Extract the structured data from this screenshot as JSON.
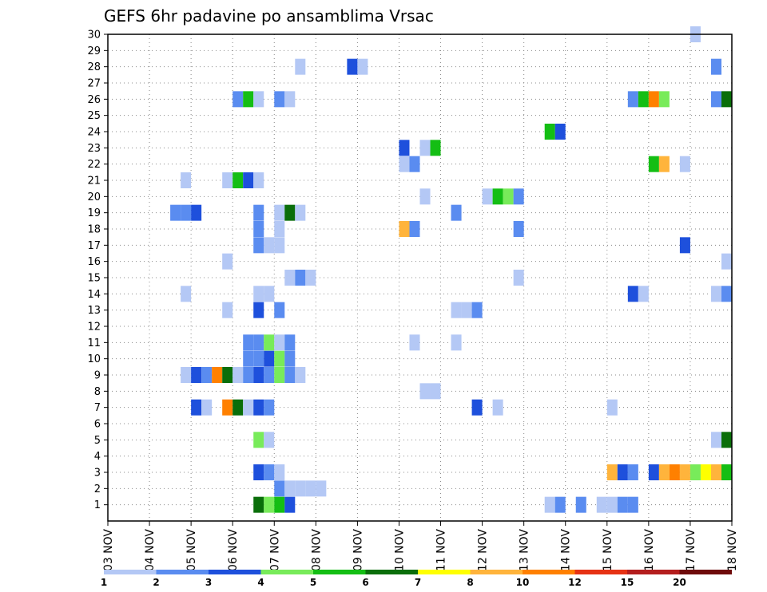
{
  "chart_data": {
    "type": "heatmap",
    "title": "GEFS 6hr padavine po ansamblima Vrsac",
    "x_tick_labels": [
      "03 NOV",
      "04 NOV",
      "05 NOV",
      "06 NOV",
      "07 NOV",
      "08 NOV",
      "09 NOV",
      "10 NOV",
      "11 NOV",
      "12 NOV",
      "13 NOV",
      "14 NOV",
      "15 NOV",
      "16 NOV",
      "17 NOV",
      "18 NOV"
    ],
    "x_unit": "6h steps from 03 NOV 00Z",
    "x_range": [
      0,
      60
    ],
    "y_tick_labels": [
      "1",
      "2",
      "3",
      "4",
      "5",
      "6",
      "7",
      "8",
      "9",
      "10",
      "11",
      "12",
      "13",
      "14",
      "15",
      "16",
      "17",
      "18",
      "19",
      "20",
      "21",
      "22",
      "23",
      "24",
      "25",
      "26",
      "27",
      "28",
      "29",
      "30"
    ],
    "y_range": [
      0,
      30
    ],
    "grid": true,
    "colorbar": {
      "labels": [
        "1",
        "2",
        "3",
        "4",
        "5",
        "6",
        "7",
        "8",
        "10",
        "12",
        "15",
        "20"
      ],
      "colors": [
        "#b4c8f5",
        "#5a8cf0",
        "#1e50dc",
        "#78eb5a",
        "#14be14",
        "#0a6e0a",
        "#ffff00",
        "#ffb43c",
        "#ff8000",
        "#e63214",
        "#b41e1e",
        "#6e0a0a"
      ]
    },
    "cells": [
      [
        30,
        57,
        1
      ],
      [
        28,
        19,
        1
      ],
      [
        28,
        24,
        3
      ],
      [
        28,
        25,
        1
      ],
      [
        28,
        59,
        2
      ],
      [
        26,
        13,
        2
      ],
      [
        26,
        14,
        5
      ],
      [
        26,
        15,
        1
      ],
      [
        26,
        17,
        2
      ],
      [
        26,
        18,
        1
      ],
      [
        26,
        51,
        2
      ],
      [
        26,
        52,
        5
      ],
      [
        26,
        53,
        9
      ],
      [
        26,
        54,
        4
      ],
      [
        26,
        59,
        2
      ],
      [
        26,
        60,
        6
      ],
      [
        24,
        43,
        5
      ],
      [
        24,
        44,
        3
      ],
      [
        23,
        29,
        3
      ],
      [
        23,
        31,
        1
      ],
      [
        23,
        32,
        5
      ],
      [
        22,
        29,
        1
      ],
      [
        22,
        30,
        2
      ],
      [
        22,
        53,
        5
      ],
      [
        22,
        54,
        8
      ],
      [
        22,
        56,
        1
      ],
      [
        21,
        8,
        1
      ],
      [
        21,
        12,
        1
      ],
      [
        21,
        13,
        5
      ],
      [
        21,
        14,
        3
      ],
      [
        21,
        15,
        1
      ],
      [
        20,
        31,
        1
      ],
      [
        20,
        37,
        1
      ],
      [
        20,
        38,
        5
      ],
      [
        20,
        39,
        4
      ],
      [
        20,
        40,
        2
      ],
      [
        19,
        7,
        2
      ],
      [
        19,
        8,
        2
      ],
      [
        19,
        9,
        3
      ],
      [
        19,
        15,
        2
      ],
      [
        19,
        17,
        1
      ],
      [
        19,
        18,
        6
      ],
      [
        19,
        19,
        1
      ],
      [
        19,
        34,
        2
      ],
      [
        18,
        15,
        2
      ],
      [
        18,
        17,
        1
      ],
      [
        18,
        29,
        8
      ],
      [
        18,
        30,
        2
      ],
      [
        18,
        40,
        2
      ],
      [
        17,
        15,
        2
      ],
      [
        17,
        16,
        1
      ],
      [
        17,
        17,
        1
      ],
      [
        17,
        56,
        3
      ],
      [
        16,
        12,
        1
      ],
      [
        16,
        60,
        1
      ],
      [
        15,
        18,
        1
      ],
      [
        15,
        19,
        2
      ],
      [
        15,
        20,
        1
      ],
      [
        15,
        40,
        1
      ],
      [
        14,
        8,
        1
      ],
      [
        14,
        15,
        1
      ],
      [
        14,
        16,
        1
      ],
      [
        14,
        51,
        3
      ],
      [
        14,
        52,
        1
      ],
      [
        14,
        59,
        1
      ],
      [
        14,
        60,
        2
      ],
      [
        13,
        12,
        1
      ],
      [
        13,
        15,
        3
      ],
      [
        13,
        17,
        2
      ],
      [
        13,
        34,
        1
      ],
      [
        13,
        35,
        1
      ],
      [
        13,
        36,
        2
      ],
      [
        11,
        14,
        2
      ],
      [
        11,
        15,
        2
      ],
      [
        11,
        16,
        4
      ],
      [
        11,
        17,
        1
      ],
      [
        11,
        18,
        2
      ],
      [
        11,
        30,
        1
      ],
      [
        11,
        34,
        1
      ],
      [
        10,
        14,
        2
      ],
      [
        10,
        15,
        2
      ],
      [
        10,
        16,
        3
      ],
      [
        10,
        17,
        4
      ],
      [
        10,
        18,
        2
      ],
      [
        9,
        8,
        1
      ],
      [
        9,
        9,
        3
      ],
      [
        9,
        10,
        2
      ],
      [
        9,
        11,
        9
      ],
      [
        9,
        12,
        6
      ],
      [
        9,
        13,
        1
      ],
      [
        9,
        14,
        2
      ],
      [
        9,
        15,
        3
      ],
      [
        9,
        16,
        2
      ],
      [
        9,
        17,
        4
      ],
      [
        9,
        18,
        2
      ],
      [
        9,
        19,
        1
      ],
      [
        8,
        31,
        1
      ],
      [
        8,
        32,
        1
      ],
      [
        7,
        9,
        3
      ],
      [
        7,
        10,
        1
      ],
      [
        7,
        12,
        9
      ],
      [
        7,
        13,
        6
      ],
      [
        7,
        14,
        1
      ],
      [
        7,
        15,
        3
      ],
      [
        7,
        16,
        2
      ],
      [
        7,
        36,
        3
      ],
      [
        7,
        38,
        1
      ],
      [
        7,
        49,
        1
      ],
      [
        5,
        15,
        4
      ],
      [
        5,
        16,
        1
      ],
      [
        5,
        59,
        1
      ],
      [
        5,
        60,
        6
      ],
      [
        3,
        15,
        3
      ],
      [
        3,
        16,
        2
      ],
      [
        3,
        17,
        1
      ],
      [
        3,
        49,
        8
      ],
      [
        3,
        50,
        3
      ],
      [
        3,
        51,
        2
      ],
      [
        3,
        53,
        3
      ],
      [
        3,
        54,
        8
      ],
      [
        3,
        55,
        9
      ],
      [
        3,
        56,
        8
      ],
      [
        3,
        57,
        4
      ],
      [
        3,
        58,
        7
      ],
      [
        3,
        59,
        8
      ],
      [
        3,
        60,
        5
      ],
      [
        2,
        17,
        2
      ],
      [
        2,
        18,
        1
      ],
      [
        2,
        19,
        1
      ],
      [
        2,
        20,
        1
      ],
      [
        2,
        21,
        1
      ],
      [
        1,
        15,
        6
      ],
      [
        1,
        16,
        4
      ],
      [
        1,
        17,
        5
      ],
      [
        1,
        18,
        3
      ],
      [
        1,
        43,
        1
      ],
      [
        1,
        44,
        2
      ],
      [
        1,
        46,
        2
      ],
      [
        1,
        48,
        1
      ],
      [
        1,
        49,
        1
      ],
      [
        1,
        50,
        2
      ],
      [
        1,
        51,
        2
      ]
    ]
  }
}
